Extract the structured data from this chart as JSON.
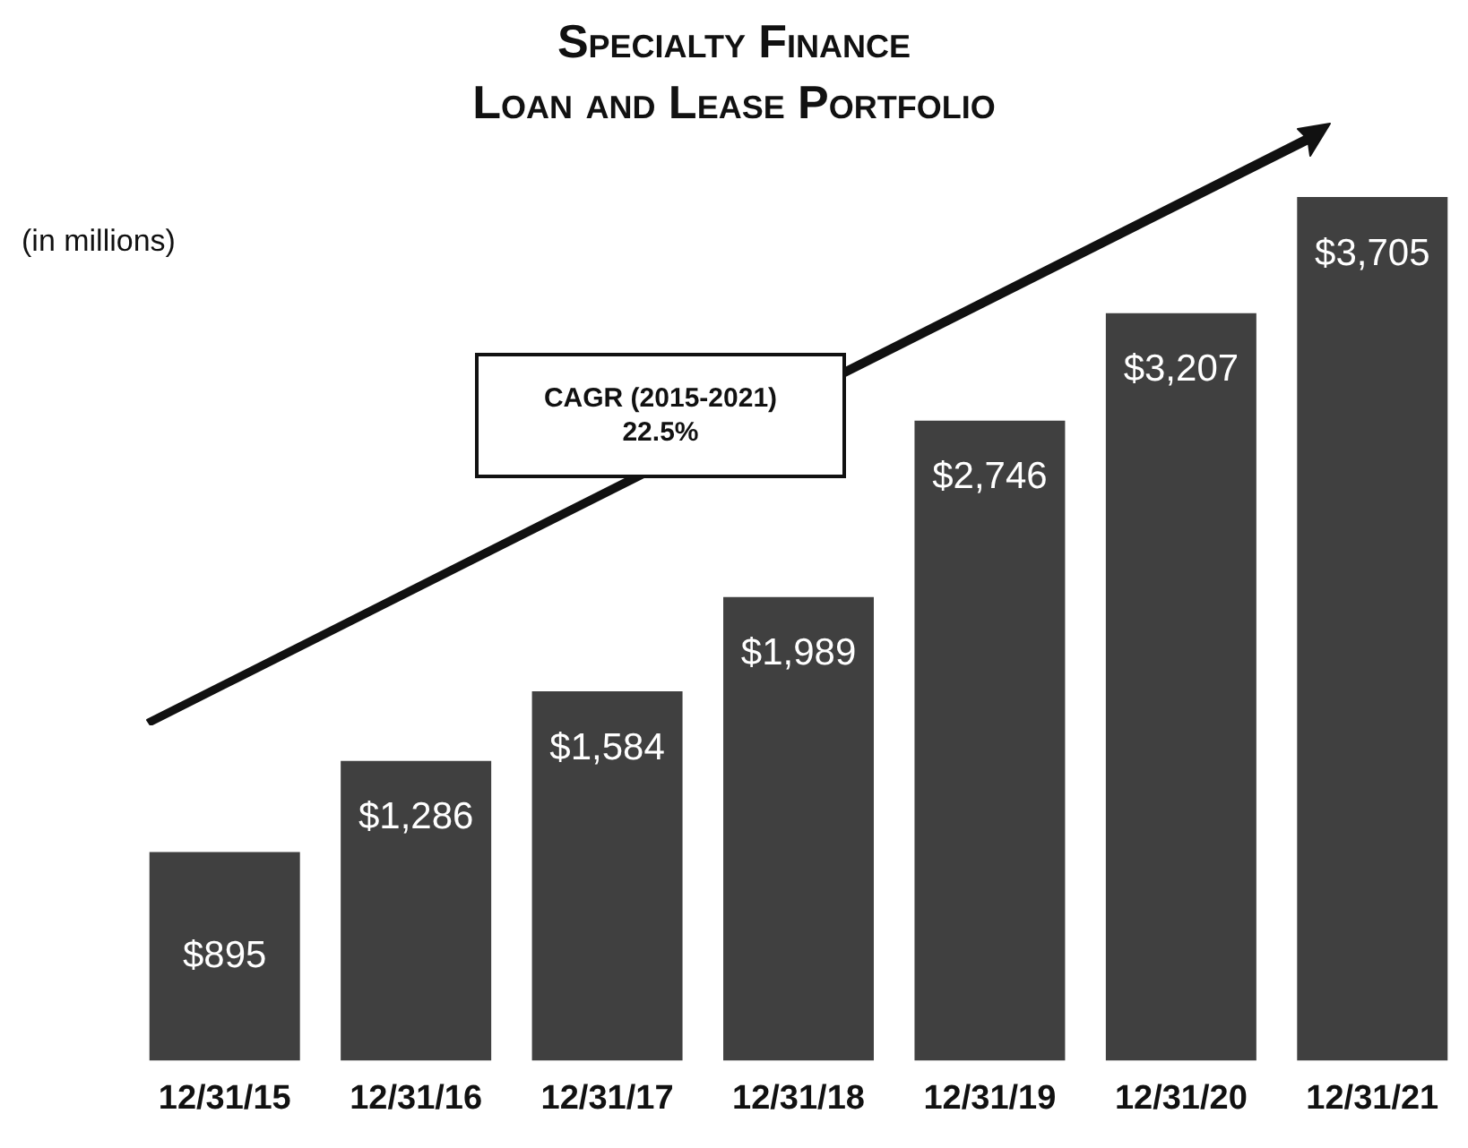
{
  "chart_data": {
    "type": "bar",
    "title": "Specialty Finance",
    "subtitle": "Loan and Lease Portfolio",
    "ylabel": "(in millions)",
    "categories": [
      "12/31/15",
      "12/31/16",
      "12/31/17",
      "12/31/18",
      "12/31/19",
      "12/31/20",
      "12/31/21"
    ],
    "values": [
      895,
      1286,
      1584,
      1989,
      2746,
      3207,
      3705
    ],
    "value_labels": [
      "$895",
      "$1,286",
      "$1,584",
      "$1,989",
      "$2,746",
      "$3,207",
      "$3,705"
    ],
    "color": "#404040",
    "grid": false,
    "legend": false,
    "annotations": [
      "CAGR (2015-2021)\n22.5%"
    ]
  }
}
